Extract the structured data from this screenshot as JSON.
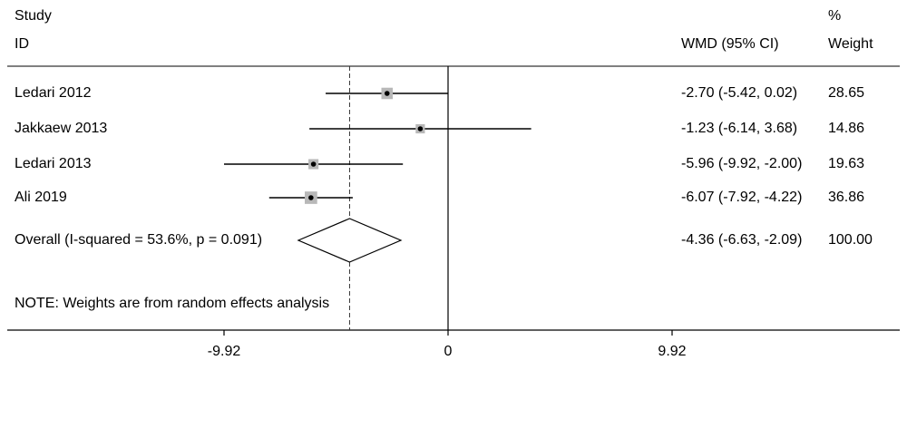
{
  "header": {
    "study_label": "Study",
    "id_label": "ID",
    "effect_label": "WMD (95% CI)",
    "weight_top": "%",
    "weight_label": "Weight"
  },
  "studies": [
    {
      "name": "Ledari 2012",
      "wmd": -2.7,
      "lower": -5.42,
      "upper": 0.02,
      "ci_text": "-2.70 (-5.42, 0.02)",
      "weight": "28.65"
    },
    {
      "name": "Jakkaew 2013",
      "wmd": -1.23,
      "lower": -6.14,
      "upper": 3.68,
      "ci_text": "-1.23 (-6.14, 3.68)",
      "weight": "14.86"
    },
    {
      "name": "Ledari 2013",
      "wmd": -5.96,
      "lower": -9.92,
      "upper": -2.0,
      "ci_text": "-5.96 (-9.92, -2.00)",
      "weight": "19.63"
    },
    {
      "name": "Ali 2019",
      "wmd": -6.07,
      "lower": -7.92,
      "upper": -4.22,
      "ci_text": "-6.07 (-7.92, -4.22)",
      "weight": "36.86"
    }
  ],
  "overall": {
    "label": "Overall  (I-squared = 53.6%, p = 0.091)",
    "wmd": -4.36,
    "lower": -6.63,
    "upper": -2.09,
    "ci_text": "-4.36 (-6.63, -2.09)",
    "weight": "100.00"
  },
  "note": "NOTE: Weights are from random effects analysis",
  "chart_data": {
    "type": "forest",
    "x_ticks": [
      -9.92,
      0,
      9.92
    ],
    "x_tick_labels": [
      "-9.92",
      "0",
      "9.92"
    ],
    "xlim": [
      -9.92,
      9.92
    ],
    "null_line": 0,
    "overall_line": -4.36,
    "colors": {
      "weight_box": "#b8b8b8",
      "marks": "#000000"
    }
  }
}
